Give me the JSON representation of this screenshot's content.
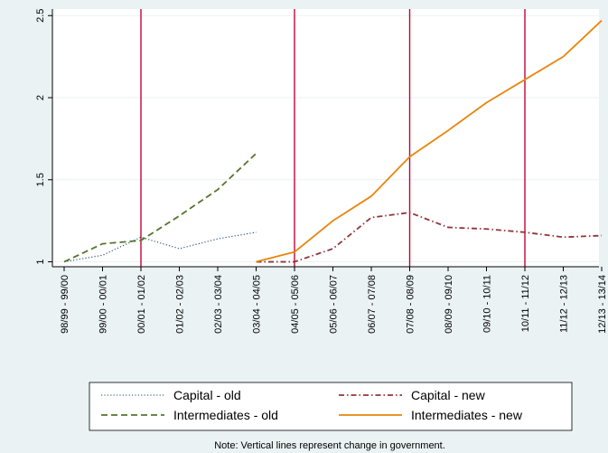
{
  "chart_data": {
    "type": "line",
    "categories": [
      "98/99 - 99/00",
      "99/00 - 00/01",
      "00/01 - 01/02",
      "01/02 - 02/03",
      "02/03 - 03/04",
      "03/04 - 04/05",
      "04/05 - 05/06",
      "05/06 - 06/07",
      "06/07 - 07/08",
      "07/08 - 08/09",
      "08/09 - 09/10",
      "09/10 - 10/11",
      "10/11 - 11/12",
      "11/12 - 12/13",
      "12/13 - 13/14"
    ],
    "series": [
      {
        "name": "Capital - old",
        "color": "#1a476f",
        "style": "dotted",
        "values": [
          1.0,
          1.04,
          1.15,
          1.08,
          1.14,
          1.18,
          null,
          null,
          null,
          null,
          null,
          null,
          null,
          null,
          null
        ]
      },
      {
        "name": "Intermediates - old",
        "color": "#55752f",
        "style": "dashed",
        "values": [
          1.0,
          1.11,
          1.13,
          1.28,
          1.44,
          1.66,
          null,
          null,
          null,
          null,
          null,
          null,
          null,
          null,
          null
        ]
      },
      {
        "name": "Capital - new",
        "color": "#90353b",
        "style": "dash-dot",
        "values": [
          null,
          null,
          null,
          null,
          null,
          1.0,
          1.0,
          1.08,
          1.27,
          1.3,
          1.21,
          1.2,
          1.18,
          1.15,
          1.16
        ]
      },
      {
        "name": "Intermediates - new",
        "color": "#e8850c",
        "style": "solid",
        "values": [
          null,
          null,
          null,
          null,
          null,
          1.0,
          1.06,
          1.25,
          1.4,
          1.64,
          1.8,
          1.97,
          2.11,
          2.25,
          2.47
        ]
      }
    ],
    "y_ticks": [
      "1",
      "1.5",
      "2",
      "2.5"
    ],
    "ylim": [
      0.97,
      2.54
    ],
    "vertical_lines_at": [
      "00/01 - 01/02",
      "04/05 - 05/06",
      "07/08 - 08/09",
      "10/11 - 11/12"
    ],
    "vertical_line_color": "#c10534",
    "grid": true,
    "legend_position": "bottom",
    "note": "Note: Vertical lines represent change in government."
  }
}
